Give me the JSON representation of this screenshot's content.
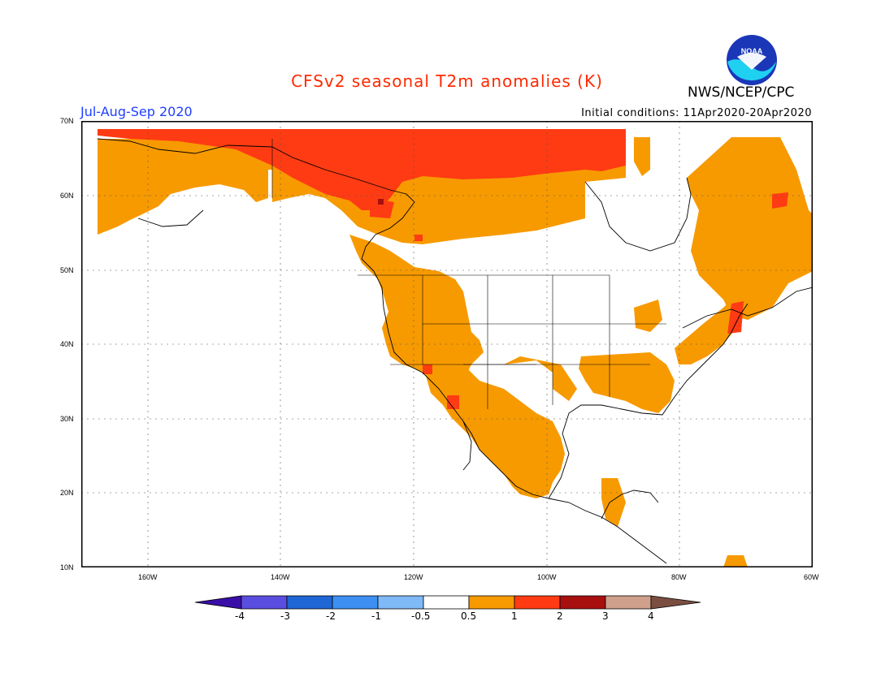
{
  "title": "CFSv2 seasonal T2m anomalies (K)",
  "period": "Jul-Aug-Sep 2020",
  "initial_conditions": "Initial conditions: 11Apr2020-20Apr2020",
  "agency": "NWS/NCEP/CPC",
  "logo_text": "NOAA",
  "lat_labels": [
    "70N",
    "60N",
    "50N",
    "40N",
    "30N",
    "20N",
    "10N"
  ],
  "lon_labels": [
    "160W",
    "140W",
    "120W",
    "100W",
    "80W",
    "60W"
  ],
  "colorbar": {
    "labels": [
      "-4",
      "-3",
      "-2",
      "-1",
      "-0.5",
      "0.5",
      "1",
      "2",
      "3",
      "4"
    ],
    "colors": [
      "#3a0fa8",
      "#5a4ee0",
      "#1f66d6",
      "#3d8ff2",
      "#7fbaf7",
      "#ffffff",
      "#f79a00",
      "#ff3b13",
      "#a80f0f",
      "#cfa08c",
      "#7a4e40"
    ]
  }
}
